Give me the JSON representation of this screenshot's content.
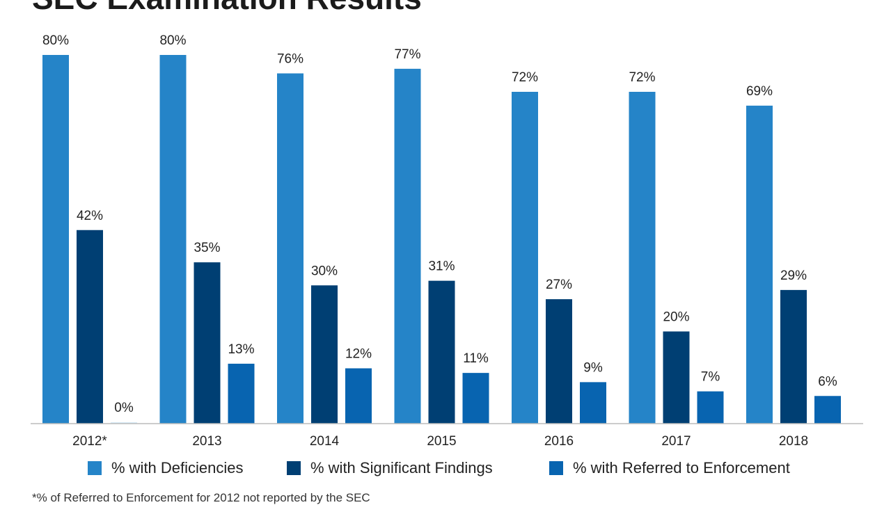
{
  "chart_data": {
    "type": "bar",
    "title": "SEC Examination Results",
    "categories": [
      "2012*",
      "2013",
      "2014",
      "2015",
      "2016",
      "2017",
      "2018"
    ],
    "series": [
      {
        "name": "% with Deficiencies",
        "values": [
          80,
          80,
          76,
          77,
          72,
          72,
          69
        ],
        "labels": [
          "80%",
          "80%",
          "76%",
          "77%",
          "72%",
          "72%",
          "69%"
        ],
        "color": "#2584c8"
      },
      {
        "name": "% with Significant Findings",
        "values": [
          42,
          35,
          30,
          31,
          27,
          20,
          29
        ],
        "labels": [
          "42%",
          "35%",
          "30%",
          "31%",
          "27%",
          "20%",
          "29%"
        ],
        "color": "#003f73"
      },
      {
        "name": "% with Referred to Enforcement",
        "values": [
          0,
          13,
          12,
          11,
          9,
          7,
          6
        ],
        "labels": [
          "0%",
          "13%",
          "12%",
          "11%",
          "9%",
          "7%",
          "6%"
        ],
        "color": "#0864b0"
      }
    ],
    "zero_bar_color": "#d6eaf7",
    "ylim": [
      0,
      80
    ],
    "xlabel": "",
    "ylabel": "",
    "grid": false,
    "legend_position": "bottom",
    "footnote": "*% of Referred to Enforcement for 2012 not reported by the SEC"
  }
}
